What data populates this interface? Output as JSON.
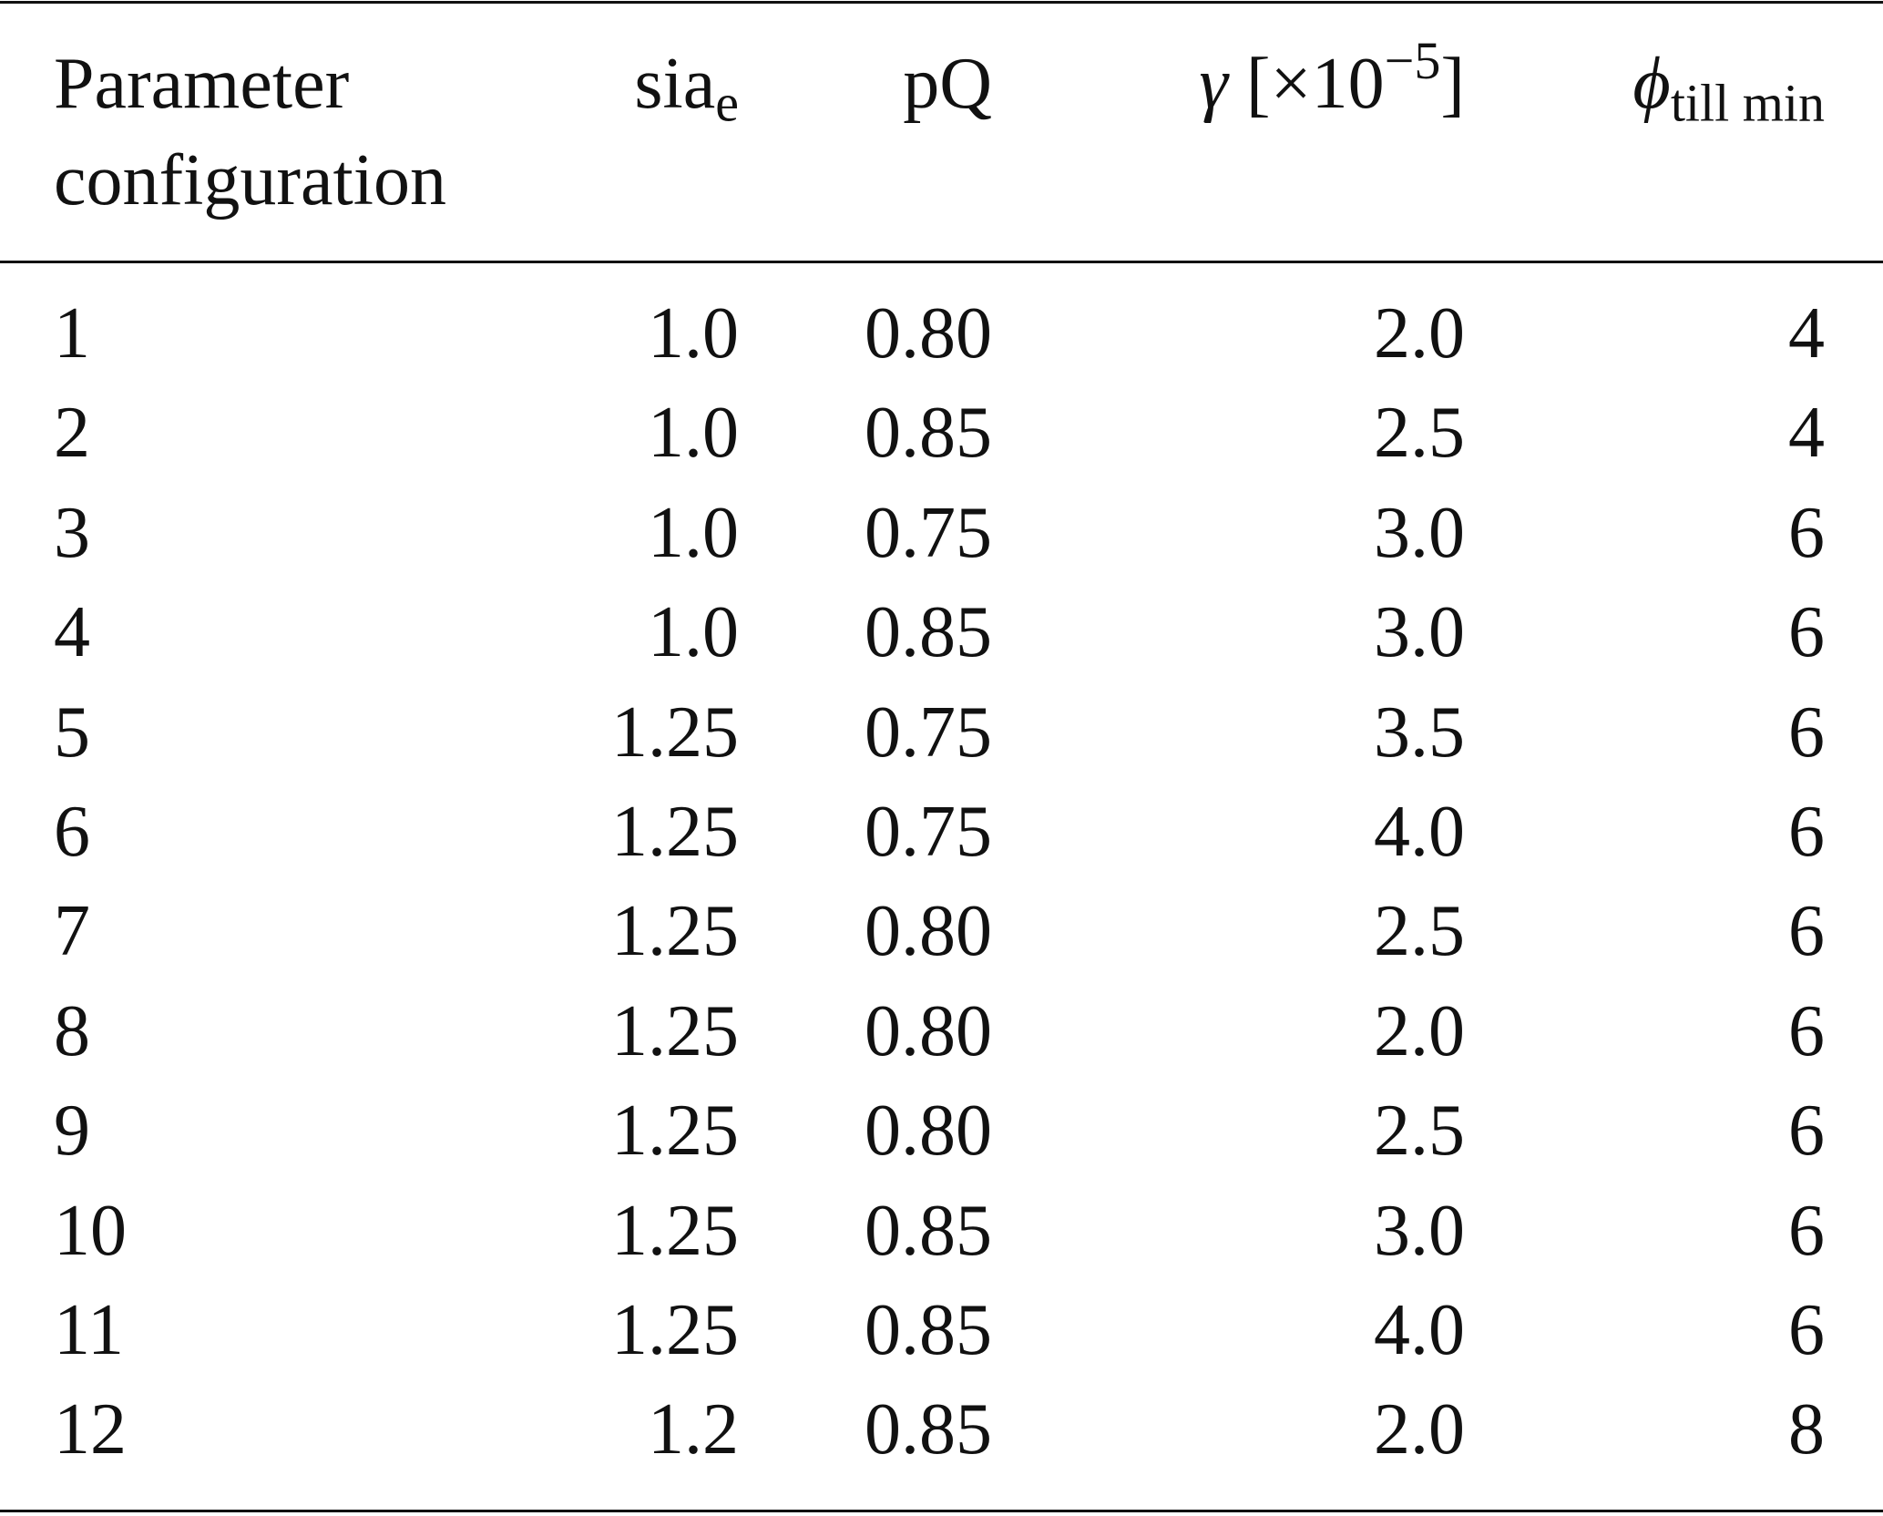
{
  "table": {
    "headers": [
      {
        "lines": [
          "Parameter",
          "configuration"
        ]
      },
      {
        "base": "sia",
        "sub": "e"
      },
      {
        "base": "pQ"
      },
      {
        "sym": "γ",
        "base": "[×10",
        "sup": "−5",
        "tail": "]"
      },
      {
        "sym": "ϕ",
        "sub": "till min"
      }
    ],
    "rows": [
      [
        "1",
        "1.0",
        "0.80",
        "2.0",
        "4"
      ],
      [
        "2",
        "1.0",
        "0.85",
        "2.5",
        "4"
      ],
      [
        "3",
        "1.0",
        "0.75",
        "3.0",
        "6"
      ],
      [
        "4",
        "1.0",
        "0.85",
        "3.0",
        "6"
      ],
      [
        "5",
        "1.25",
        "0.75",
        "3.5",
        "6"
      ],
      [
        "6",
        "1.25",
        "0.75",
        "4.0",
        "6"
      ],
      [
        "7",
        "1.25",
        "0.80",
        "2.5",
        "6"
      ],
      [
        "8",
        "1.25",
        "0.80",
        "2.0",
        "6"
      ],
      [
        "9",
        "1.25",
        "0.80",
        "2.5",
        "6"
      ],
      [
        "10",
        "1.25",
        "0.85",
        "3.0",
        "6"
      ],
      [
        "11",
        "1.25",
        "0.85",
        "4.0",
        "6"
      ],
      [
        "12",
        "1.2",
        "0.85",
        "2.0",
        "8"
      ]
    ]
  }
}
